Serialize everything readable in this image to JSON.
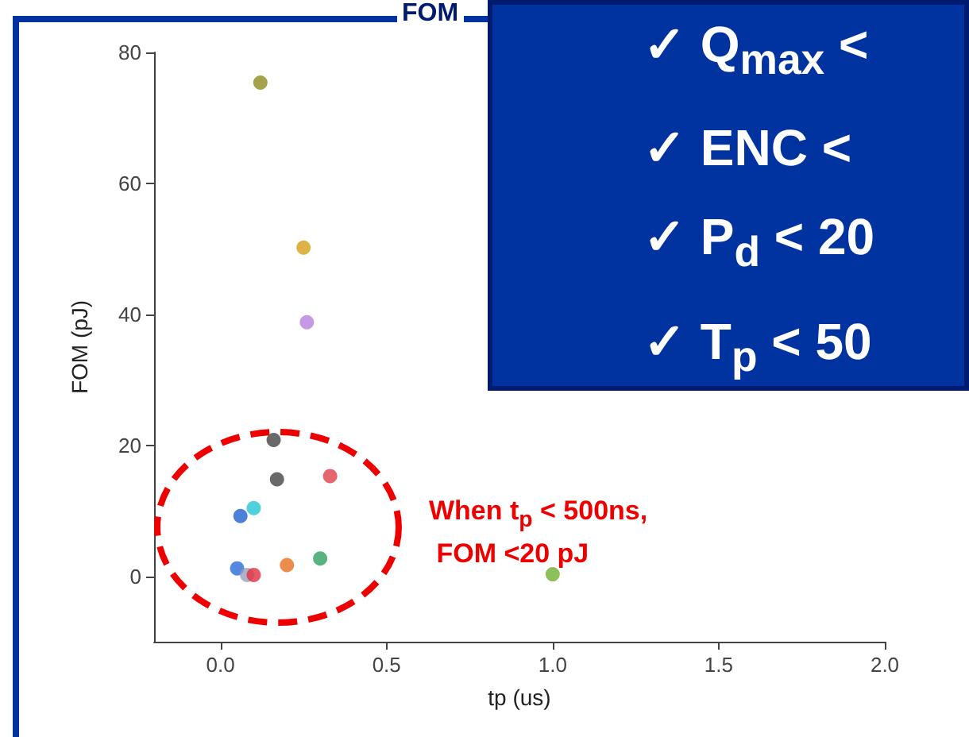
{
  "chart_data": {
    "type": "scatter",
    "title": "FOM",
    "xlabel": "tp (us)",
    "ylabel": "FOM (pJ)",
    "x": [
      0.12,
      0.25,
      0.26,
      0.16,
      0.17,
      0.33,
      0.1,
      0.06,
      0.05,
      0.08,
      0.1,
      0.2,
      0.3,
      1.0
    ],
    "values": [
      75.4,
      50.2,
      38.8,
      20.8,
      14.8,
      15.3,
      10.4,
      9.2,
      1.2,
      0.2,
      0.2,
      1.7,
      2.7,
      0.3
    ],
    "colors": [
      "#8c8c1e",
      "#d4a017",
      "#b77fdc",
      "#444444",
      "#444444",
      "#e0404a",
      "#22c4d4",
      "#2060d0",
      "#2a6ad8",
      "#9aa0b8",
      "#e03040",
      "#e87020",
      "#30a060",
      "#70b030"
    ],
    "xlim": [
      -0.2,
      2.0
    ],
    "xticks": [
      {
        "value": 0,
        "label": "0.0"
      },
      0.5,
      {
        "value": 1,
        "label": "1.0"
      },
      1.5,
      {
        "value": 2,
        "label": "2.0"
      }
    ],
    "ylim": [
      -10,
      80
    ],
    "yticks": [
      0,
      20,
      40,
      60,
      80
    ],
    "grid": false,
    "marker": "circle",
    "annotations": [
      "When t$_{p}$ < 500ns,\n FOM <20 pJ",
      "✓  Q$_{max}$ <",
      "✓  ENC <",
      "✓  P$_{d}$ < 20",
      "✓  T$_{p}$ < 50"
    ]
  }
}
